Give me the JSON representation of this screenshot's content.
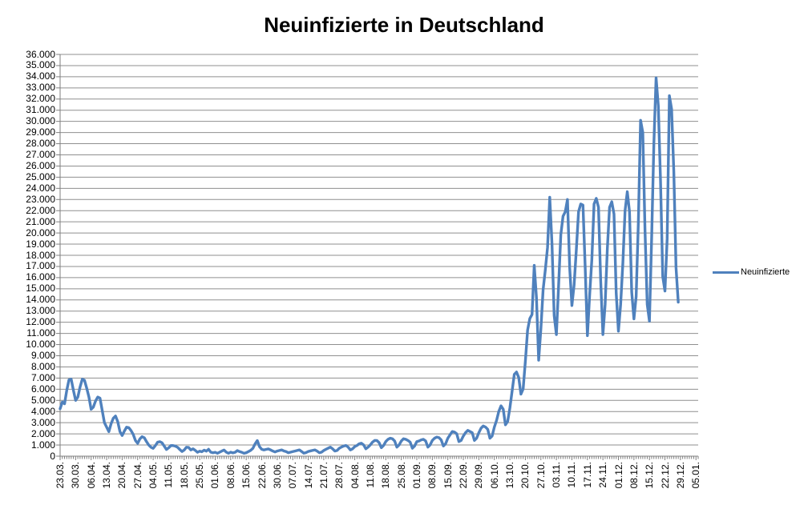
{
  "title": "Neuinfizierte in Deutschland",
  "legend": {
    "label": "Neuinfizierte",
    "position": "right"
  },
  "colors": {
    "series": "#4F81BD",
    "grid": "#8F8F8F",
    "axis": "#7F7F7F",
    "text": "#000000",
    "background": "#FFFFFF"
  },
  "chart_data": {
    "type": "line",
    "title": "Neuinfizierte in Deutschland",
    "xlabel": "",
    "ylabel": "",
    "ylim": [
      0,
      36000
    ],
    "y_tick_step": 1000,
    "grid": "horizontal",
    "legend_position": "right",
    "x_slots": 288,
    "label_every": 7,
    "y_tick_labels": [
      "0",
      "1.000",
      "2.000",
      "3.000",
      "4.000",
      "5.000",
      "6.000",
      "7.000",
      "8.000",
      "9.000",
      "10.000",
      "11.000",
      "12.000",
      "13.000",
      "14.000",
      "15.000",
      "16.000",
      "17.000",
      "18.000",
      "19.000",
      "20.000",
      "21.000",
      "22.000",
      "23.000",
      "24.000",
      "25.000",
      "26.000",
      "27.000",
      "28.000",
      "29.000",
      "30.000",
      "31.000",
      "32.000",
      "33.000",
      "34.000",
      "35.000",
      "36.000"
    ],
    "x_tick_labels": [
      "23.03.",
      "30.03.",
      "06.04.",
      "13.04.",
      "20.04.",
      "27.04.",
      "04.05.",
      "11.05.",
      "18.05.",
      "25.05.",
      "01.06.",
      "08.06.",
      "15.06.",
      "22.06.",
      "30.06.",
      "07.07.",
      "14.07.",
      "21.07.",
      "28.07.",
      "04.08.",
      "11.08.",
      "18.08.",
      "25.08.",
      "01.09.",
      "08.09.",
      "15.09.",
      "22.09.",
      "29.09.",
      "06.10.",
      "13.10.",
      "20.10.",
      "27.10.",
      "03.11.",
      "10.11.",
      "17.11.",
      "24.11.",
      "01.12.",
      "08.12.",
      "15.12.",
      "22.12.",
      "29.12.",
      "05.01."
    ],
    "series": [
      {
        "name": "Neuinfizierte",
        "color": "#4F81BD",
        "values": [
          4250,
          4850,
          4700,
          5900,
          6850,
          6900,
          5900,
          5000,
          5300,
          6200,
          6900,
          6800,
          6100,
          5300,
          4200,
          4400,
          4950,
          5300,
          5200,
          4100,
          3000,
          2600,
          2200,
          2900,
          3400,
          3600,
          3100,
          2200,
          1850,
          2250,
          2600,
          2550,
          2300,
          1950,
          1400,
          1150,
          1550,
          1750,
          1650,
          1300,
          1000,
          800,
          700,
          950,
          1250,
          1300,
          1200,
          900,
          600,
          750,
          950,
          950,
          900,
          800,
          600,
          420,
          550,
          800,
          780,
          560,
          660,
          520,
          350,
          450,
          400,
          540,
          450,
          620,
          360,
          310,
          350,
          260,
          360,
          460,
          550,
          360,
          260,
          360,
          300,
          350,
          500,
          410,
          350,
          260,
          310,
          410,
          520,
          700,
          1100,
          1400,
          850,
          620,
          560,
          610,
          650,
          560,
          460,
          380,
          460,
          510,
          560,
          470,
          410,
          310,
          360,
          410,
          460,
          510,
          560,
          420,
          270,
          320,
          420,
          470,
          520,
          560,
          460,
          310,
          360,
          510,
          620,
          720,
          810,
          660,
          460,
          510,
          710,
          820,
          910,
          960,
          810,
          560,
          660,
          860,
          960,
          1110,
          1160,
          1010,
          660,
          810,
          1010,
          1260,
          1410,
          1400,
          1210,
          760,
          960,
          1310,
          1510,
          1610,
          1560,
          1360,
          810,
          1010,
          1360,
          1560,
          1510,
          1410,
          1260,
          710,
          910,
          1310,
          1360,
          1460,
          1510,
          1360,
          810,
          1010,
          1410,
          1610,
          1710,
          1660,
          1460,
          910,
          1110,
          1610,
          1910,
          2210,
          2160,
          2010,
          1310,
          1410,
          1810,
          2110,
          2310,
          2210,
          2110,
          1410,
          1610,
          2110,
          2510,
          2710,
          2610,
          2410,
          1610,
          1810,
          2610,
          3210,
          4010,
          4510,
          4210,
          2810,
          3110,
          4310,
          5810,
          7330,
          7540,
          7050,
          5560,
          6030,
          8520,
          11290,
          12330,
          12700,
          17100,
          14200,
          8600,
          11400,
          14900,
          16700,
          18700,
          23200,
          19100,
          12600,
          10900,
          15300,
          19850,
          21500,
          21900,
          23000,
          16900,
          13500,
          15350,
          18500,
          21900,
          22600,
          22500,
          16900,
          10800,
          14400,
          17600,
          22600,
          23100,
          22300,
          15700,
          10900,
          13600,
          18600,
          22300,
          22800,
          21700,
          14600,
          11200,
          13600,
          17300,
          22000,
          23700,
          21900,
          14700,
          12300,
          14300,
          21000,
          30100,
          29000,
          20200,
          13600,
          12100,
          19600,
          28000,
          33900,
          31400,
          24700,
          16100,
          14800,
          19500,
          32300,
          31100,
          25500,
          16900,
          13800
        ]
      }
    ]
  }
}
